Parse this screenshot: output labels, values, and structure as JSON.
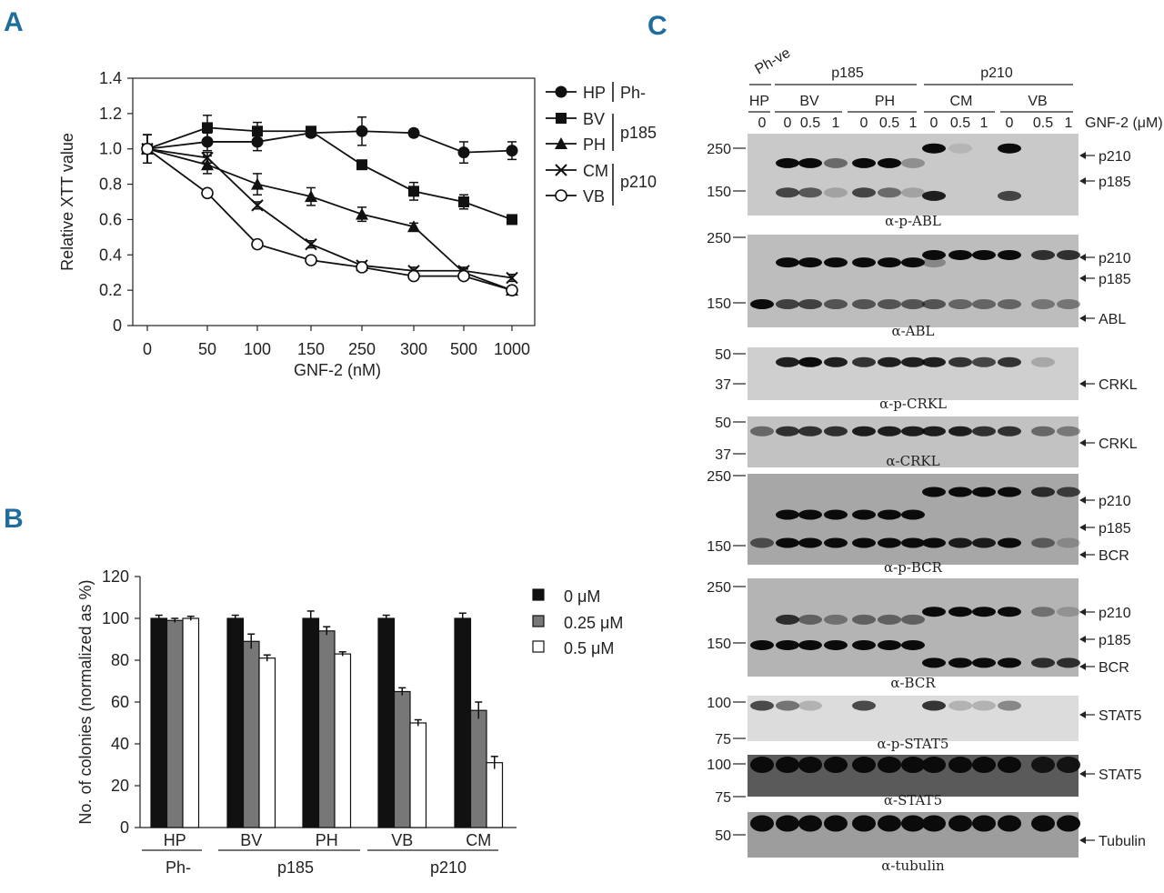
{
  "figure": {
    "panel_labels": [
      "A",
      "B",
      "C"
    ]
  },
  "chart_data": [
    {
      "id": "A",
      "type": "line",
      "xlabel": "GNF-2 (nM)",
      "ylabel": "Relative XTT value",
      "categories": [
        "0",
        "50",
        "100",
        "150",
        "250",
        "300",
        "500",
        "1000"
      ],
      "ylim": [
        0,
        1.4
      ],
      "yticks": [
        "0",
        "0.2",
        "0.4",
        "0.6",
        "0.8",
        "1.0",
        "1.2",
        "1.4"
      ],
      "series": [
        {
          "name": "HP",
          "marker": "circle-filled",
          "values": [
            1.0,
            1.04,
            1.04,
            1.09,
            1.1,
            1.09,
            0.98,
            0.99
          ],
          "errors": [
            0.08,
            0.05,
            0.05,
            0.02,
            0.08,
            0.02,
            0.06,
            0.05
          ]
        },
        {
          "name": "BV",
          "marker": "square-filled",
          "values": [
            1.0,
            1.12,
            1.1,
            1.1,
            0.91,
            0.76,
            0.7,
            0.6
          ],
          "errors": [
            0.08,
            0.07,
            0.05,
            0.02,
            0.02,
            0.05,
            0.04,
            0.02
          ]
        },
        {
          "name": "PH",
          "marker": "triangle-filled",
          "values": [
            1.0,
            0.91,
            0.8,
            0.73,
            0.63,
            0.56,
            0.3,
            0.2
          ],
          "errors": [
            0.08,
            0.05,
            0.06,
            0.05,
            0.04,
            0.02,
            0.02,
            0.02
          ]
        },
        {
          "name": "CM",
          "marker": "x-open",
          "values": [
            1.0,
            0.95,
            0.68,
            0.46,
            0.34,
            0.31,
            0.31,
            0.27
          ],
          "errors": [
            0.08,
            0.03,
            0.02,
            0.02,
            0.02,
            0.02,
            0.02,
            0.02
          ]
        },
        {
          "name": "VB",
          "marker": "circle-open",
          "values": [
            1.0,
            0.75,
            0.46,
            0.37,
            0.33,
            0.28,
            0.28,
            0.2
          ],
          "errors": [
            0.08,
            0.02,
            0.02,
            0.02,
            0.02,
            0.02,
            0.02,
            0.02
          ]
        }
      ],
      "legend_groups": [
        {
          "label": "Ph-",
          "members": [
            "HP"
          ]
        },
        {
          "label": "p185",
          "members": [
            "BV",
            "PH"
          ]
        },
        {
          "label": "p210",
          "members": [
            "CM",
            "VB"
          ]
        }
      ]
    },
    {
      "id": "B",
      "type": "bar",
      "ylabel": "No. of colonies (normalized as %)",
      "categories": [
        "HP",
        "BV",
        "PH",
        "VB",
        "CM"
      ],
      "groups": [
        {
          "label": "Ph-",
          "members": [
            "HP"
          ]
        },
        {
          "label": "p185",
          "members": [
            "BV",
            "PH"
          ]
        },
        {
          "label": "p210",
          "members": [
            "VB",
            "CM"
          ]
        }
      ],
      "ylim": [
        0,
        120
      ],
      "yticks": [
        "0",
        "20",
        "40",
        "60",
        "80",
        "100",
        "120"
      ],
      "series": [
        {
          "name": "0 μM",
          "color": "#111111",
          "values": [
            100,
            100,
            100,
            100,
            100
          ],
          "errors": [
            1.5,
            1.5,
            3.5,
            1.5,
            2.5
          ]
        },
        {
          "name": "0.25 μM",
          "color": "#777777",
          "values": [
            99,
            89,
            94,
            65,
            56
          ],
          "errors": [
            1,
            3.5,
            2,
            1.8,
            4
          ]
        },
        {
          "name": "0.5 μM",
          "color": "#ffffff",
          "values": [
            100,
            81,
            83,
            50,
            31
          ],
          "errors": [
            1,
            1.5,
            1,
            1.5,
            3
          ]
        }
      ]
    }
  ],
  "panel_c": {
    "header": {
      "phve": "Ph-ve",
      "p185": "p185",
      "p210": "p210",
      "lines": [
        "HP",
        "BV",
        "PH",
        "CM",
        "VB"
      ],
      "doses": [
        "0",
        "0",
        "0.5",
        "1",
        "0",
        "0.5",
        "1",
        "0",
        "0.5",
        "1",
        "0",
        "0.5",
        "1"
      ],
      "gnf_label": "GNF-2 (μM)"
    },
    "blots": [
      {
        "caption": "α-p-ABL",
        "markers": [
          "250",
          "150"
        ],
        "bands": [
          "p210",
          "p185"
        ]
      },
      {
        "caption": "α-ABL",
        "markers": [
          "250",
          "150"
        ],
        "bands": [
          "p210",
          "p185",
          "ABL"
        ]
      },
      {
        "caption": "α-p-CRKL",
        "markers": [
          "50",
          "37"
        ],
        "bands": [
          "CRKL"
        ]
      },
      {
        "caption": "α-CRKL",
        "markers": [
          "50",
          "37"
        ],
        "bands": [
          "CRKL"
        ]
      },
      {
        "caption": "α-p-BCR",
        "markers": [
          "250",
          "150"
        ],
        "bands": [
          "p210",
          "p185",
          "BCR"
        ]
      },
      {
        "caption": "α-BCR",
        "markers": [
          "250",
          "150"
        ],
        "bands": [
          "p210",
          "p185",
          "BCR"
        ]
      },
      {
        "caption": "α-p-STAT5",
        "markers": [
          "100",
          "75"
        ],
        "bands": [
          "STAT5"
        ]
      },
      {
        "caption": "α-STAT5",
        "markers": [
          "100",
          "75"
        ],
        "bands": [
          "STAT5"
        ]
      },
      {
        "caption": "α-tubulin",
        "markers": [
          "50"
        ],
        "bands": [
          "Tubulin"
        ]
      }
    ]
  }
}
